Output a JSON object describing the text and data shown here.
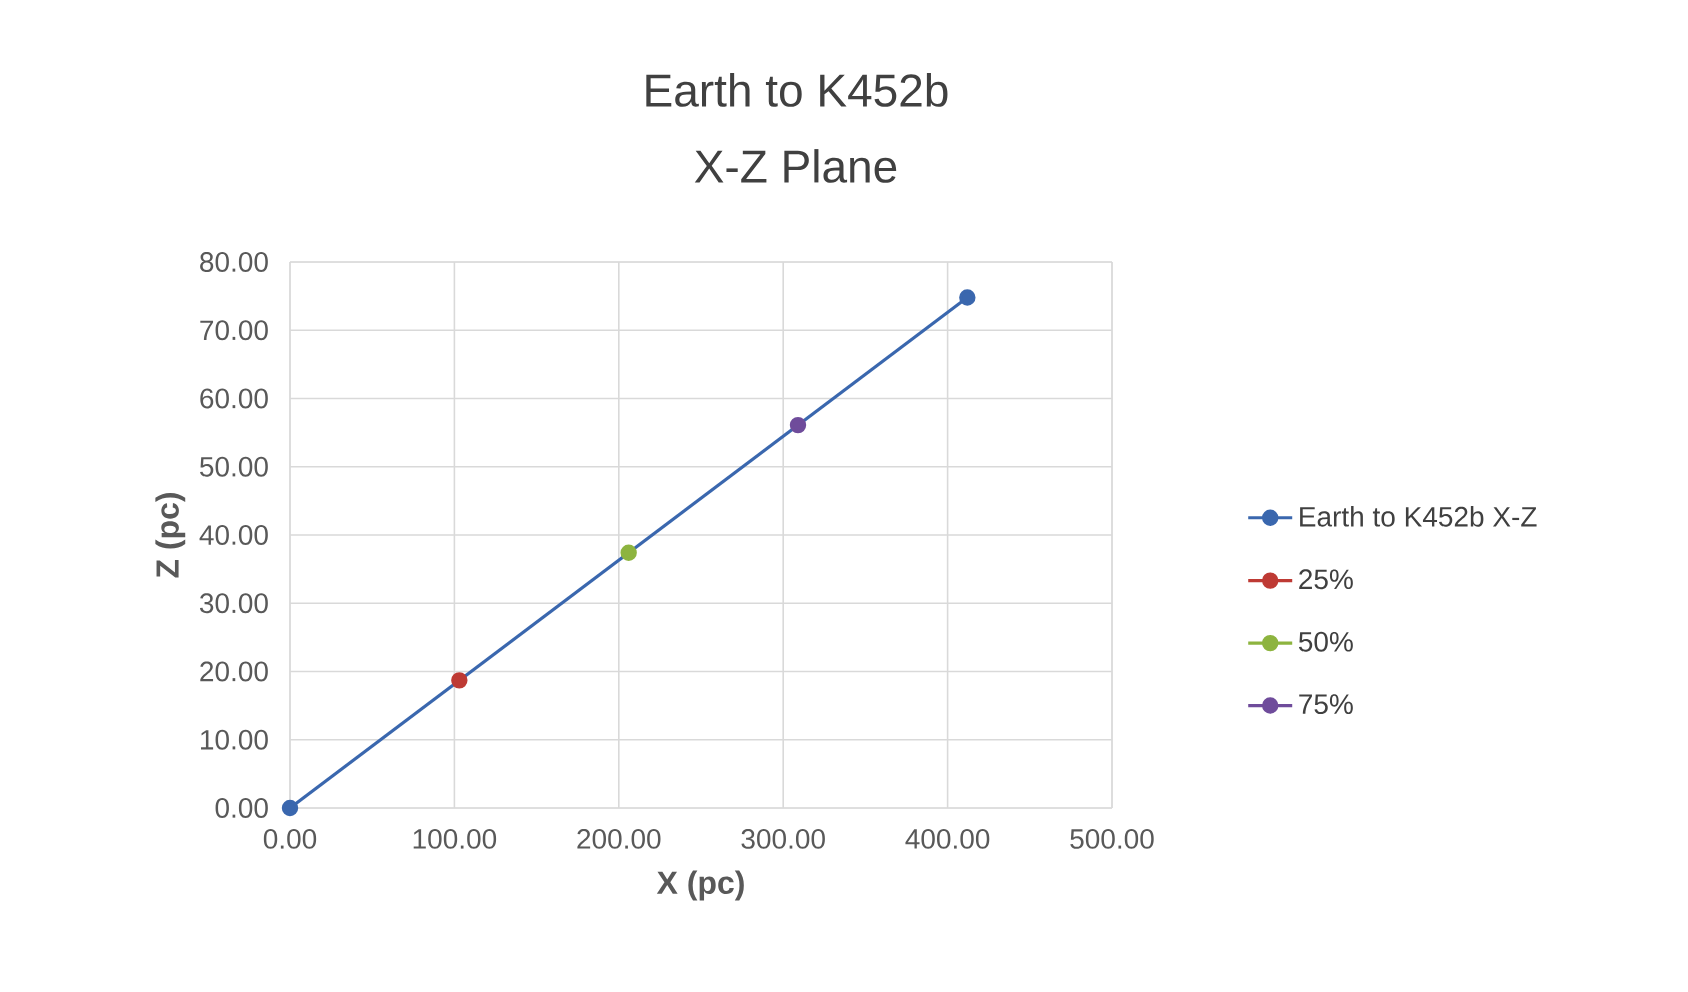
{
  "chart_data": {
    "type": "line",
    "title": "Earth to K452b",
    "subtitle": "X-Z Plane",
    "xlabel": "X (pc)",
    "ylabel": "Z (pc)",
    "series": [
      {
        "name": "Earth to K452b X-Z",
        "color": "#3a67ae",
        "x": [
          0,
          412
        ],
        "values": [
          0,
          74.8
        ]
      },
      {
        "name": "25%",
        "color": "#be3a34",
        "x": [
          103
        ],
        "values": [
          18.7
        ]
      },
      {
        "name": "50%",
        "color": "#8db43f",
        "x": [
          206
        ],
        "values": [
          37.4
        ]
      },
      {
        "name": "75%",
        "color": "#6f4c9b",
        "x": [
          309
        ],
        "values": [
          56.1
        ]
      }
    ],
    "xlim": [
      0,
      500
    ],
    "ylim": [
      0,
      80
    ],
    "xticks": [
      {
        "value": 0,
        "label": "0.00"
      },
      {
        "value": 100,
        "label": "100.00"
      },
      {
        "value": 200,
        "label": "200.00"
      },
      {
        "value": 300,
        "label": "300.00"
      },
      {
        "value": 400,
        "label": "400.00"
      },
      {
        "value": 500,
        "label": "500.00"
      }
    ],
    "yticks": [
      {
        "value": 0,
        "label": "0.00"
      },
      {
        "value": 10,
        "label": "10.00"
      },
      {
        "value": 20,
        "label": "20.00"
      },
      {
        "value": 30,
        "label": "30.00"
      },
      {
        "value": 40,
        "label": "40.00"
      },
      {
        "value": 50,
        "label": "50.00"
      },
      {
        "value": 60,
        "label": "60.00"
      },
      {
        "value": 70,
        "label": "70.00"
      },
      {
        "value": 80,
        "label": "80.00"
      }
    ],
    "grid": true,
    "legend": "right",
    "marker": "circle",
    "line_style": "solid"
  }
}
